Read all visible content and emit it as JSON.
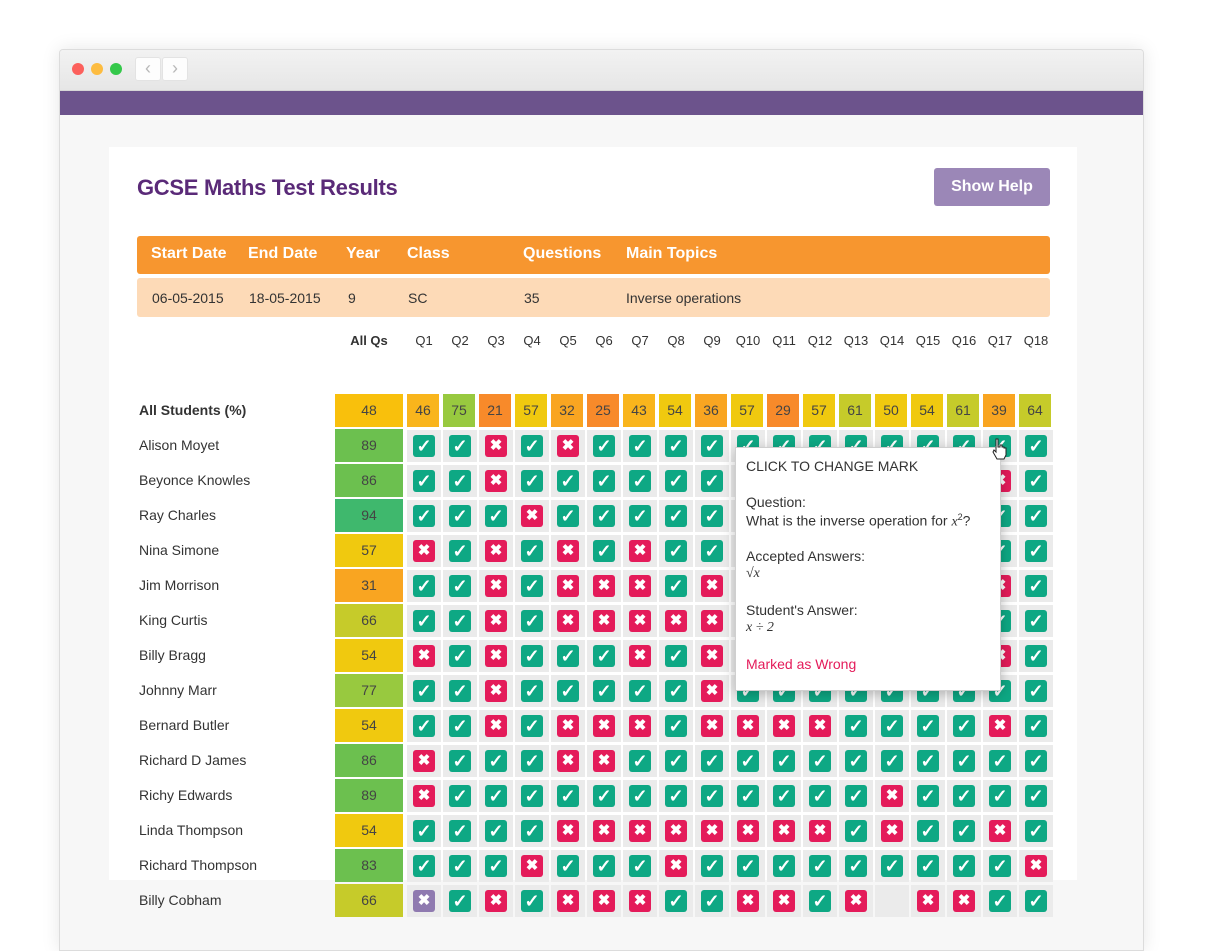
{
  "app": {
    "title": "GCSE Maths Test Results",
    "help_button": "Show Help",
    "accent_color": "#6c538c",
    "correct_color": "#0ea884",
    "wrong_color": "#e41b5a"
  },
  "info": {
    "headers": [
      "Start Date",
      "End Date",
      "Year",
      "Class",
      "Questions",
      "Main Topics"
    ],
    "values": [
      "06-05-2015",
      "18-05-2015",
      "9",
      "SC",
      "35",
      "Inverse operations"
    ]
  },
  "table": {
    "all_qs_label": "All Qs",
    "questions": [
      "Q1",
      "Q2",
      "Q3",
      "Q4",
      "Q5",
      "Q6",
      "Q7",
      "Q8",
      "Q9",
      "Q10",
      "Q11",
      "Q12",
      "Q13",
      "Q14",
      "Q15",
      "Q16",
      "Q17",
      "Q18"
    ],
    "summary": {
      "label": "All Students (%)",
      "score": "48",
      "values": [
        "46",
        "75",
        "21",
        "57",
        "32",
        "25",
        "43",
        "54",
        "36",
        "57",
        "29",
        "57",
        "61",
        "50",
        "54",
        "61",
        "39",
        "64"
      ]
    },
    "students": [
      {
        "name": "Alison Moyet",
        "score": "89",
        "marks": "110101111111111111"
      },
      {
        "name": "Beyonce Knowles",
        "score": "86",
        "marks": "110111111111111101"
      },
      {
        "name": "Ray Charles",
        "score": "94",
        "marks": "111011111111111111"
      },
      {
        "name": "Nina Simone",
        "score": "57",
        "marks": "010101011111111111"
      },
      {
        "name": "Jim Morrison",
        "score": "31",
        "marks": "110100010111111101"
      },
      {
        "name": "King Curtis",
        "score": "66",
        "marks": "110100000111111111"
      },
      {
        "name": "Billy Bragg",
        "score": "54",
        "marks": "010111010111111101"
      },
      {
        "name": "Johnny Marr",
        "score": "77",
        "marks": "110111110111111111"
      },
      {
        "name": "Bernard Butler",
        "score": "54",
        "marks": "110100010000111101"
      },
      {
        "name": "Richard D James",
        "score": "86",
        "marks": "011100111111111111"
      },
      {
        "name": "Richy Edwards",
        "score": "89",
        "marks": "011111111111101111"
      },
      {
        "name": "Linda Thompson",
        "score": "54",
        "marks": "111100000000101101"
      },
      {
        "name": "Richard Thompson",
        "score": "83",
        "marks": "111011101111111110"
      },
      {
        "name": "Billy Cobham",
        "score": "66",
        "marks": "S101000110010_0011"
      }
    ]
  },
  "tooltip": {
    "title": "CLICK TO CHANGE MARK",
    "question_label": "Question:",
    "question_text": "What is the inverse operation for",
    "question_math": "x",
    "question_sup": "2",
    "question_end": "?",
    "accepted_label": "Accepted Answers:",
    "accepted_value": "√x",
    "student_label": "Student's Answer:",
    "student_value": "x ÷ 2",
    "status": "Marked as Wrong",
    "status_color": "#e41b5a"
  }
}
